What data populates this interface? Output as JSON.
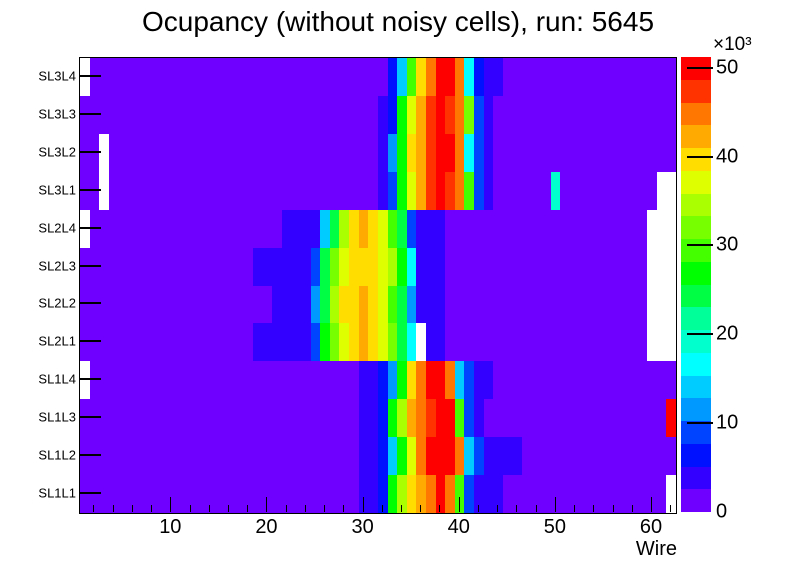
{
  "title": "Ocupancy (without noisy cells), run: 5645",
  "axes": {
    "x_label": "Wire",
    "x_ticks": [
      10,
      20,
      30,
      40,
      50,
      60
    ],
    "x_minor_step": 2,
    "x_min": 0.5,
    "x_max": 62.5,
    "y_labels_top_to_bottom": [
      "SL3L4",
      "SL3L3",
      "SL3L2",
      "SL3L1",
      "SL2L4",
      "SL2L3",
      "SL2L2",
      "SL2L1",
      "SL1L4",
      "SL1L3",
      "SL1L2",
      "SL1L1"
    ],
    "z_ticks": [
      0,
      10,
      20,
      30,
      40,
      50
    ],
    "z_exponent": "×10³",
    "z_min": 0,
    "z_max": 51.2
  },
  "colors": {
    "background": "#ffffff",
    "frame": "#000000",
    "empty_cell": "#ffffff",
    "palette_low_to_high": [
      "#6F00FF",
      "#3300FF",
      "#0011FF",
      "#0044FF",
      "#0099FF",
      "#00CCFF",
      "#00FFFF",
      "#00FFCC",
      "#00FF99",
      "#00FF44",
      "#00FF00",
      "#44FF00",
      "#77FF00",
      "#AAFF00",
      "#DDFF00",
      "#FFDD00",
      "#FFAA00",
      "#FF7700",
      "#FF3300",
      "#FF0000"
    ]
  },
  "chart_data": {
    "type": "heatmap",
    "title": "Ocupancy (without noisy cells), run: 5645",
    "xlabel": "Wire",
    "value_units": "counts ×10³",
    "wire_min": 1,
    "wire_max": 62,
    "rows_top_to_bottom": [
      "SL3L4",
      "SL3L3",
      "SL3L2",
      "SL3L1",
      "SL2L4",
      "SL2L3",
      "SL2L2",
      "SL2L1",
      "SL1L4",
      "SL1L3",
      "SL1L2",
      "SL1L1"
    ],
    "note": "values_rle: run-length encoded [count, value] per row, wires 1..62, values in units of 10^3 counts, null = empty (white) cell",
    "values_rle": {
      "SL3L4": [
        [
          1,
          null
        ],
        [
          31,
          1.2
        ],
        [
          1,
          6.2
        ],
        [
          1,
          13.7
        ],
        [
          1,
          28.7
        ],
        [
          1,
          38.7
        ],
        [
          1,
          43.7
        ],
        [
          2,
          48.7
        ],
        [
          1,
          43.7
        ],
        [
          1,
          16.2
        ],
        [
          1,
          6.2
        ],
        [
          2,
          3.7
        ],
        [
          18,
          1.2
        ]
      ],
      "SL3L3": [
        [
          31,
          1.2
        ],
        [
          1,
          3.7
        ],
        [
          1,
          6.2
        ],
        [
          1,
          26.2
        ],
        [
          1,
          36.2
        ],
        [
          1,
          41.2
        ],
        [
          1,
          46.2
        ],
        [
          1,
          48.7
        ],
        [
          1,
          46.2
        ],
        [
          1,
          43.7
        ],
        [
          1,
          31.2
        ],
        [
          1,
          8.7
        ],
        [
          1,
          3.7
        ],
        [
          19,
          1.2
        ]
      ],
      "SL3L2": [
        [
          2,
          1.2
        ],
        [
          1,
          null
        ],
        [
          28,
          1.2
        ],
        [
          1,
          3.7
        ],
        [
          1,
          11.2
        ],
        [
          1,
          26.2
        ],
        [
          1,
          38.7
        ],
        [
          1,
          41.2
        ],
        [
          1,
          46.2
        ],
        [
          2,
          48.7
        ],
        [
          1,
          43.7
        ],
        [
          1,
          16.2
        ],
        [
          1,
          8.7
        ],
        [
          1,
          3.7
        ],
        [
          19,
          1.2
        ]
      ],
      "SL3L1": [
        [
          2,
          1.2
        ],
        [
          1,
          null
        ],
        [
          28,
          1.2
        ],
        [
          1,
          3.7
        ],
        [
          1,
          8.7
        ],
        [
          1,
          26.2
        ],
        [
          1,
          36.2
        ],
        [
          1,
          41.2
        ],
        [
          1,
          46.2
        ],
        [
          1,
          48.7
        ],
        [
          1,
          46.2
        ],
        [
          1,
          43.7
        ],
        [
          1,
          28.7
        ],
        [
          1,
          8.7
        ],
        [
          1,
          3.7
        ],
        [
          6,
          1.2
        ],
        [
          1,
          18.7
        ],
        [
          10,
          1.2
        ],
        [
          2,
          null
        ]
      ],
      "SL2L4": [
        [
          1,
          null
        ],
        [
          20,
          1.2
        ],
        [
          4,
          3.7
        ],
        [
          1,
          13.7
        ],
        [
          1,
          23.7
        ],
        [
          1,
          33.7
        ],
        [
          1,
          38.7
        ],
        [
          1,
          41.2
        ],
        [
          1,
          38.7
        ],
        [
          1,
          36.2
        ],
        [
          1,
          28.7
        ],
        [
          1,
          23.7
        ],
        [
          1,
          8.7
        ],
        [
          3,
          3.7
        ],
        [
          21,
          1.2
        ],
        [
          3,
          null
        ]
      ],
      "SL2L3": [
        [
          18,
          1.2
        ],
        [
          6,
          3.7
        ],
        [
          1,
          8.7
        ],
        [
          1,
          23.7
        ],
        [
          1,
          31.2
        ],
        [
          1,
          36.2
        ],
        [
          3,
          38.7
        ],
        [
          1,
          36.2
        ],
        [
          1,
          33.7
        ],
        [
          1,
          26.2
        ],
        [
          1,
          16.2
        ],
        [
          3,
          3.7
        ],
        [
          21,
          1.2
        ],
        [
          3,
          null
        ]
      ],
      "SL2L2": [
        [
          20,
          1.2
        ],
        [
          4,
          3.7
        ],
        [
          1,
          11.2
        ],
        [
          1,
          23.7
        ],
        [
          1,
          33.7
        ],
        [
          2,
          38.7
        ],
        [
          1,
          41.2
        ],
        [
          1,
          38.7
        ],
        [
          1,
          36.2
        ],
        [
          1,
          28.7
        ],
        [
          1,
          23.7
        ],
        [
          1,
          11.2
        ],
        [
          3,
          3.7
        ],
        [
          21,
          1.2
        ],
        [
          3,
          null
        ]
      ],
      "SL2L1": [
        [
          18,
          1.2
        ],
        [
          6,
          3.7
        ],
        [
          1,
          8.7
        ],
        [
          1,
          26.2
        ],
        [
          1,
          31.2
        ],
        [
          1,
          36.2
        ],
        [
          1,
          38.7
        ],
        [
          1,
          41.2
        ],
        [
          1,
          38.7
        ],
        [
          1,
          36.2
        ],
        [
          1,
          31.2
        ],
        [
          1,
          23.7
        ],
        [
          1,
          16.2
        ],
        [
          1,
          null
        ],
        [
          2,
          3.7
        ],
        [
          21,
          1.2
        ],
        [
          3,
          null
        ]
      ],
      "SL1L4": [
        [
          1,
          null
        ],
        [
          28,
          1.2
        ],
        [
          2,
          3.7
        ],
        [
          1,
          6.2
        ],
        [
          1,
          11.2
        ],
        [
          1,
          26.2
        ],
        [
          1,
          38.7
        ],
        [
          1,
          43.7
        ],
        [
          2,
          48.7
        ],
        [
          1,
          43.7
        ],
        [
          1,
          13.7
        ],
        [
          1,
          8.7
        ],
        [
          2,
          3.7
        ],
        [
          19,
          1.2
        ]
      ],
      "SL1L3": [
        [
          29,
          1.2
        ],
        [
          2,
          3.7
        ],
        [
          1,
          6.2
        ],
        [
          1,
          26.2
        ],
        [
          1,
          33.7
        ],
        [
          1,
          41.2
        ],
        [
          1,
          43.7
        ],
        [
          1,
          46.2
        ],
        [
          2,
          48.7
        ],
        [
          1,
          28.7
        ],
        [
          1,
          8.7
        ],
        [
          1,
          3.7
        ],
        [
          19,
          1.2
        ],
        [
          1,
          48.7
        ]
      ],
      "SL1L2": [
        [
          29,
          1.2
        ],
        [
          2,
          3.7
        ],
        [
          1,
          6.2
        ],
        [
          1,
          13.7
        ],
        [
          1,
          26.2
        ],
        [
          1,
          36.2
        ],
        [
          1,
          43.7
        ],
        [
          3,
          48.7
        ],
        [
          1,
          43.7
        ],
        [
          1,
          13.7
        ],
        [
          1,
          8.7
        ],
        [
          4,
          3.7
        ],
        [
          16,
          1.2
        ]
      ],
      "SL1L1": [
        [
          29,
          1.2
        ],
        [
          2,
          3.7
        ],
        [
          1,
          6.2
        ],
        [
          1,
          26.2
        ],
        [
          1,
          33.7
        ],
        [
          1,
          38.7
        ],
        [
          1,
          41.2
        ],
        [
          1,
          43.7
        ],
        [
          1,
          48.7
        ],
        [
          1,
          43.7
        ],
        [
          1,
          28.7
        ],
        [
          1,
          8.7
        ],
        [
          3,
          3.7
        ],
        [
          17,
          1.2
        ],
        [
          1,
          null
        ]
      ]
    }
  }
}
